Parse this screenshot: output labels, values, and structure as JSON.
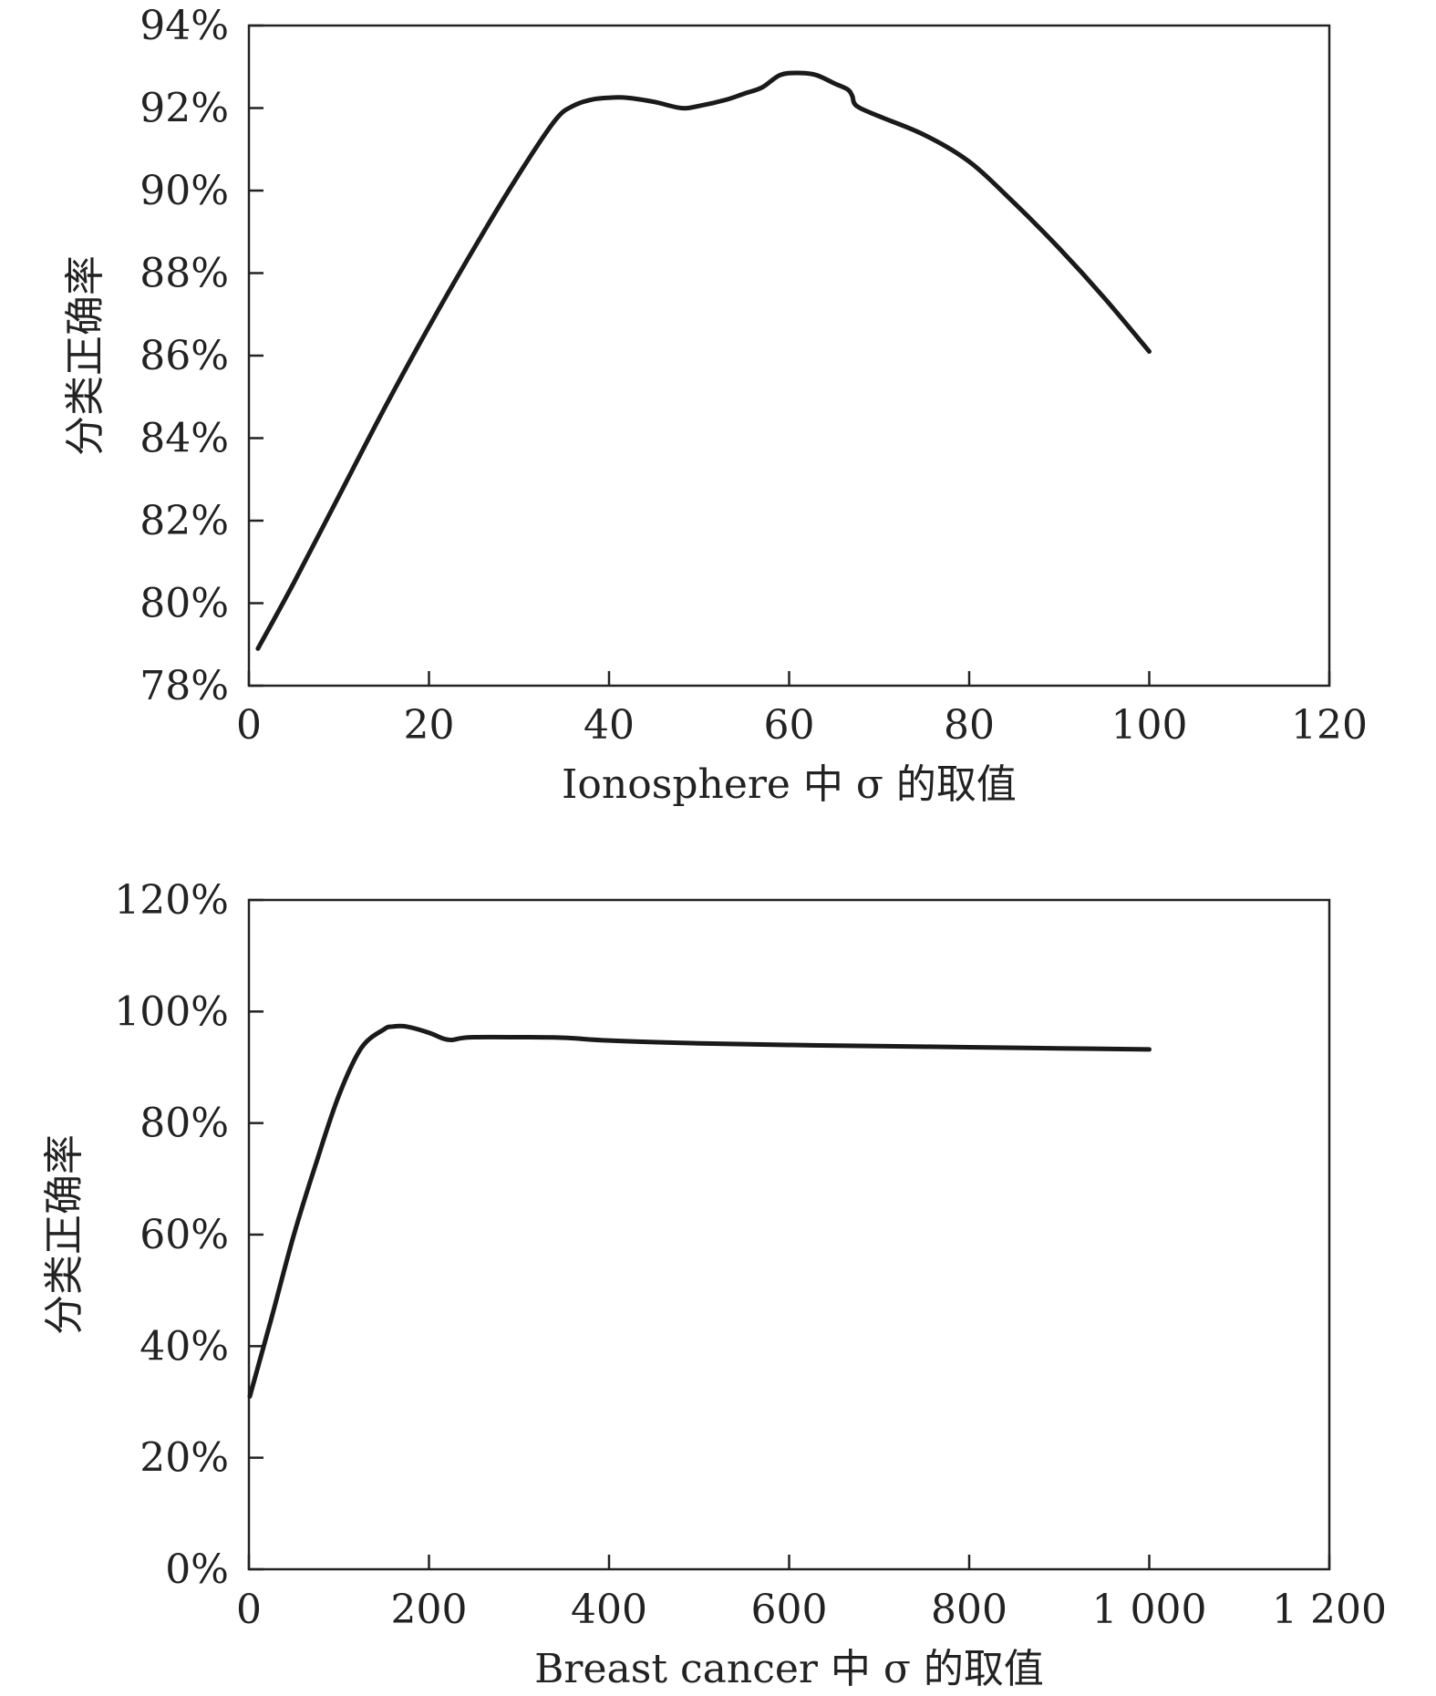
{
  "chart_data": [
    {
      "type": "line",
      "xlabel": "Ionosphere 中 σ 的取值",
      "ylabel": "分类正确率",
      "xlim": [
        0,
        120
      ],
      "ylim": [
        78,
        94
      ],
      "x_ticks": [
        0,
        20,
        40,
        60,
        80,
        100,
        120
      ],
      "x_tick_labels": [
        "0",
        "20",
        "40",
        "60",
        "80",
        "100",
        "120"
      ],
      "y_ticks": [
        78,
        80,
        82,
        84,
        86,
        88,
        90,
        92,
        94
      ],
      "y_tick_labels": [
        "78%",
        "80%",
        "82%",
        "84%",
        "86%",
        "88%",
        "90%",
        "92%",
        "94%"
      ],
      "grid": false,
      "series": [
        {
          "x": [
            1,
            5,
            10,
            15,
            20,
            25,
            30,
            34,
            36,
            38,
            40,
            42,
            45,
            48,
            50,
            53,
            55,
            57,
            59,
            61,
            63,
            65,
            66.5,
            67,
            67.5,
            70,
            75,
            80,
            85,
            90,
            95,
            100
          ],
          "y": [
            78.9,
            80.5,
            82.6,
            84.7,
            86.7,
            88.6,
            90.4,
            91.7,
            92.05,
            92.2,
            92.25,
            92.25,
            92.15,
            92.0,
            92.05,
            92.2,
            92.35,
            92.5,
            92.8,
            92.85,
            92.8,
            92.6,
            92.45,
            92.3,
            92.05,
            91.8,
            91.35,
            90.7,
            89.7,
            88.6,
            87.4,
            86.1
          ],
          "color": "#1a1a1a"
        }
      ]
    },
    {
      "type": "line",
      "xlabel": "Breast cancer 中 σ 的取值",
      "ylabel": "分类正确率",
      "xlim": [
        0,
        1200
      ],
      "ylim": [
        0,
        120
      ],
      "x_ticks": [
        0,
        200,
        400,
        600,
        800,
        1000,
        1200
      ],
      "x_tick_labels": [
        "0",
        "200",
        "400",
        "600",
        "800",
        "1 000",
        "1 200"
      ],
      "y_ticks": [
        0,
        20,
        40,
        60,
        80,
        100,
        120
      ],
      "y_tick_labels": [
        "0%",
        "20%",
        "40%",
        "60%",
        "80%",
        "100%",
        "120%"
      ],
      "grid": false,
      "series": [
        {
          "x": [
            1,
            25,
            50,
            75,
            100,
            125,
            150,
            160,
            175,
            200,
            215,
            225,
            235,
            250,
            300,
            350,
            400,
            500,
            600,
            700,
            800,
            900,
            1000
          ],
          "y": [
            31,
            45,
            60,
            73,
            85,
            93.5,
            96.8,
            97.3,
            97.3,
            96.2,
            95.2,
            94.9,
            95.2,
            95.4,
            95.4,
            95.3,
            94.8,
            94.3,
            94.0,
            93.8,
            93.6,
            93.4,
            93.2
          ],
          "color": "#1a1a1a"
        }
      ]
    }
  ]
}
